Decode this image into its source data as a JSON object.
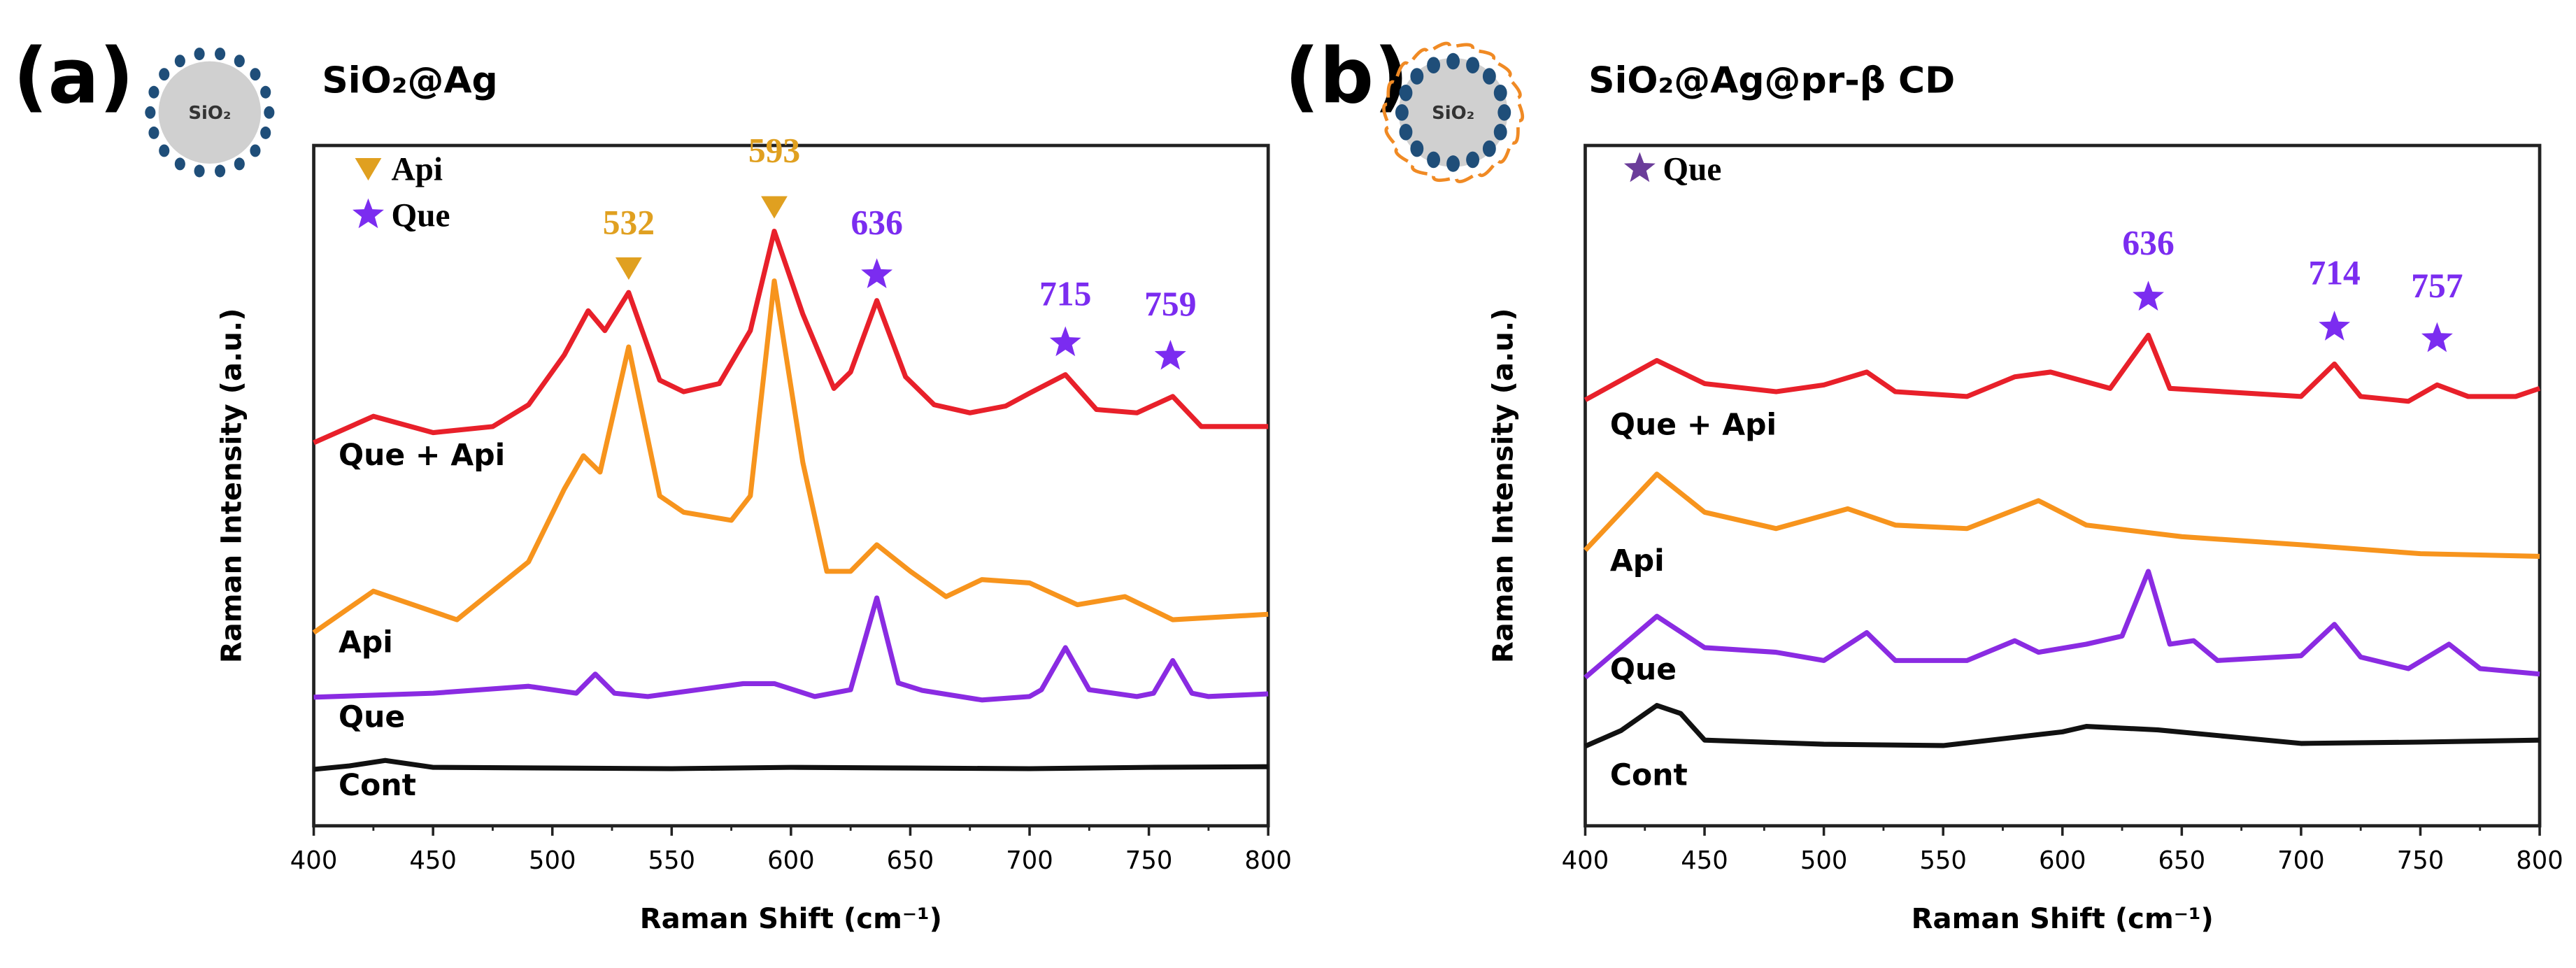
{
  "colors": {
    "que_api": "#e8202a",
    "api": "#f7941d",
    "que": "#8a2be2",
    "cont": "#111111",
    "api_marker": "#e0a020",
    "que_marker": "#7b2cf0",
    "legend_star_b": "#6b3d9a",
    "ag_dot": "#1f4e79",
    "core": "#d0d0d0",
    "shell": "#f08a24"
  },
  "chart_data": [
    {
      "type": "line",
      "panel_label": "(a)",
      "title": "SiO₂@Ag",
      "particle_label": "SiO₂",
      "xlabel": "Raman Shift (cm⁻¹)",
      "ylabel": "Raman Intensity (a.u.)",
      "xlim": [
        400,
        800
      ],
      "ylim": [
        0,
        100
      ],
      "xticks": [
        "400",
        "450",
        "500",
        "550",
        "600",
        "650",
        "700",
        "750",
        "800"
      ],
      "grid": false,
      "legend": [
        {
          "marker": "triangle-down",
          "label": "Api"
        },
        {
          "marker": "star",
          "label": "Que"
        }
      ],
      "series": [
        {
          "name": "Que + Api",
          "color_key": "que_api",
          "label_y": 53,
          "x": [
            400,
            425,
            450,
            475,
            490,
            505,
            515,
            522,
            532,
            545,
            555,
            570,
            583,
            593,
            605,
            618,
            625,
            636,
            648,
            660,
            675,
            690,
            700,
            715,
            728,
            745,
            760,
            772,
            800
          ],
          "y": [
            56.3,
            60.2,
            57.8,
            58.7,
            61.9,
            69.2,
            75.7,
            72.8,
            78.4,
            65.5,
            63.8,
            65.0,
            72.8,
            87.4,
            75.2,
            64.3,
            66.7,
            77.2,
            66.0,
            61.9,
            60.7,
            61.7,
            63.6,
            66.3,
            61.2,
            60.7,
            63.1,
            58.7,
            58.7
          ]
        },
        {
          "name": "Api",
          "color_key": "api",
          "label_y": 25.5,
          "x": [
            400,
            425,
            460,
            490,
            505,
            513,
            520,
            532,
            545,
            555,
            575,
            583,
            593,
            605,
            615,
            625,
            636,
            650,
            665,
            680,
            700,
            720,
            740,
            760,
            800
          ],
          "y": [
            28.4,
            34.5,
            30.3,
            38.8,
            49.5,
            54.4,
            52.0,
            70.4,
            48.5,
            46.1,
            44.9,
            48.5,
            80.1,
            53.4,
            37.4,
            37.4,
            41.3,
            37.4,
            33.7,
            36.2,
            35.7,
            32.5,
            33.7,
            30.3,
            31.1
          ]
        },
        {
          "name": "Que",
          "color_key": "que",
          "label_y": 14.5,
          "x": [
            400,
            450,
            490,
            510,
            518,
            526,
            540,
            580,
            593,
            610,
            625,
            636,
            645,
            655,
            680,
            700,
            705,
            715,
            725,
            745,
            752,
            760,
            768,
            775,
            800
          ],
          "y": [
            18.9,
            19.5,
            20.5,
            19.5,
            22.3,
            19.5,
            19.0,
            20.9,
            20.9,
            19.0,
            20.0,
            33.5,
            21.0,
            19.9,
            18.5,
            19.0,
            20.0,
            26.2,
            20.0,
            19.0,
            19.5,
            24.3,
            19.5,
            19.0,
            19.4
          ]
        },
        {
          "name": "Cont",
          "color_key": "cont",
          "label_y": 4.5,
          "x": [
            400,
            415,
            430,
            450,
            500,
            550,
            600,
            650,
            700,
            750,
            800
          ],
          "y": [
            8.3,
            8.8,
            9.6,
            8.6,
            8.5,
            8.4,
            8.6,
            8.5,
            8.4,
            8.6,
            8.7
          ]
        }
      ],
      "annotations": [
        {
          "x": 532,
          "label": "532",
          "marker": "triangle-down",
          "label_y": 87,
          "marker_y": 82
        },
        {
          "x": 593,
          "label": "593",
          "marker": "triangle-down",
          "label_y": 97.6,
          "marker_y": 91
        },
        {
          "x": 636,
          "label": "636",
          "marker": "star",
          "label_y": 87,
          "marker_y": 81
        },
        {
          "x": 715,
          "label": "715",
          "marker": "star",
          "label_y": 76.5,
          "marker_y": 71
        },
        {
          "x": 759,
          "label": "759",
          "marker": "star",
          "label_y": 75,
          "marker_y": 69
        }
      ]
    },
    {
      "type": "line",
      "panel_label": "(b)",
      "title": "SiO₂@Ag@pr-β CD",
      "particle_label": "SiO₂",
      "xlabel": "Raman Shift (cm⁻¹)",
      "ylabel": "Raman Intensity (a.u.)",
      "xlim": [
        400,
        800
      ],
      "ylim": [
        0,
        100
      ],
      "xticks": [
        "400",
        "450",
        "500",
        "550",
        "600",
        "650",
        "700",
        "750",
        "800"
      ],
      "grid": false,
      "legend": [
        {
          "marker": "star",
          "label": "Que"
        }
      ],
      "series": [
        {
          "name": "Que + Api",
          "color_key": "que_api",
          "label_y": 57.5,
          "x": [
            400,
            430,
            450,
            480,
            500,
            518,
            530,
            560,
            580,
            595,
            620,
            636,
            645,
            700,
            714,
            725,
            745,
            757,
            770,
            790,
            800
          ],
          "y": [
            62.6,
            68.4,
            65.0,
            63.8,
            64.8,
            66.7,
            63.8,
            63.1,
            66.0,
            66.7,
            64.3,
            72.1,
            64.3,
            63.1,
            67.9,
            63.1,
            62.4,
            64.8,
            63.1,
            63.1,
            64.3
          ]
        },
        {
          "name": "Api",
          "color_key": "api",
          "label_y": 37.5,
          "x": [
            400,
            430,
            450,
            480,
            510,
            530,
            560,
            590,
            610,
            650,
            700,
            750,
            800
          ],
          "y": [
            40.5,
            51.7,
            46.1,
            43.7,
            46.6,
            44.2,
            43.7,
            47.8,
            44.2,
            42.5,
            41.3,
            40.0,
            39.6
          ]
        },
        {
          "name": "Que",
          "color_key": "que",
          "label_y": 21.5,
          "x": [
            400,
            430,
            450,
            480,
            500,
            518,
            530,
            560,
            580,
            590,
            610,
            625,
            636,
            645,
            655,
            665,
            700,
            714,
            725,
            745,
            762,
            775,
            800
          ],
          "y": [
            21.8,
            30.8,
            26.2,
            25.5,
            24.3,
            28.4,
            24.3,
            24.3,
            27.2,
            25.5,
            26.7,
            27.9,
            37.4,
            26.7,
            27.2,
            24.3,
            25.0,
            29.6,
            24.8,
            23.1,
            26.7,
            23.1,
            22.3
          ]
        },
        {
          "name": "Cont",
          "color_key": "cont",
          "label_y": 6,
          "x": [
            400,
            415,
            430,
            440,
            450,
            500,
            550,
            600,
            610,
            640,
            700,
            750,
            800
          ],
          "y": [
            11.7,
            14.0,
            17.7,
            16.5,
            12.6,
            12.0,
            11.8,
            13.8,
            14.6,
            14.1,
            12.1,
            12.3,
            12.6
          ]
        }
      ],
      "annotations": [
        {
          "x": 636,
          "label": "636",
          "marker": "star",
          "label_y": 84,
          "marker_y": 77.7
        },
        {
          "x": 714,
          "label": "714",
          "marker": "star",
          "label_y": 79.6,
          "marker_y": 73.3
        },
        {
          "x": 757,
          "label": "757",
          "marker": "star",
          "label_y": 77.7,
          "marker_y": 71.6
        }
      ]
    }
  ]
}
